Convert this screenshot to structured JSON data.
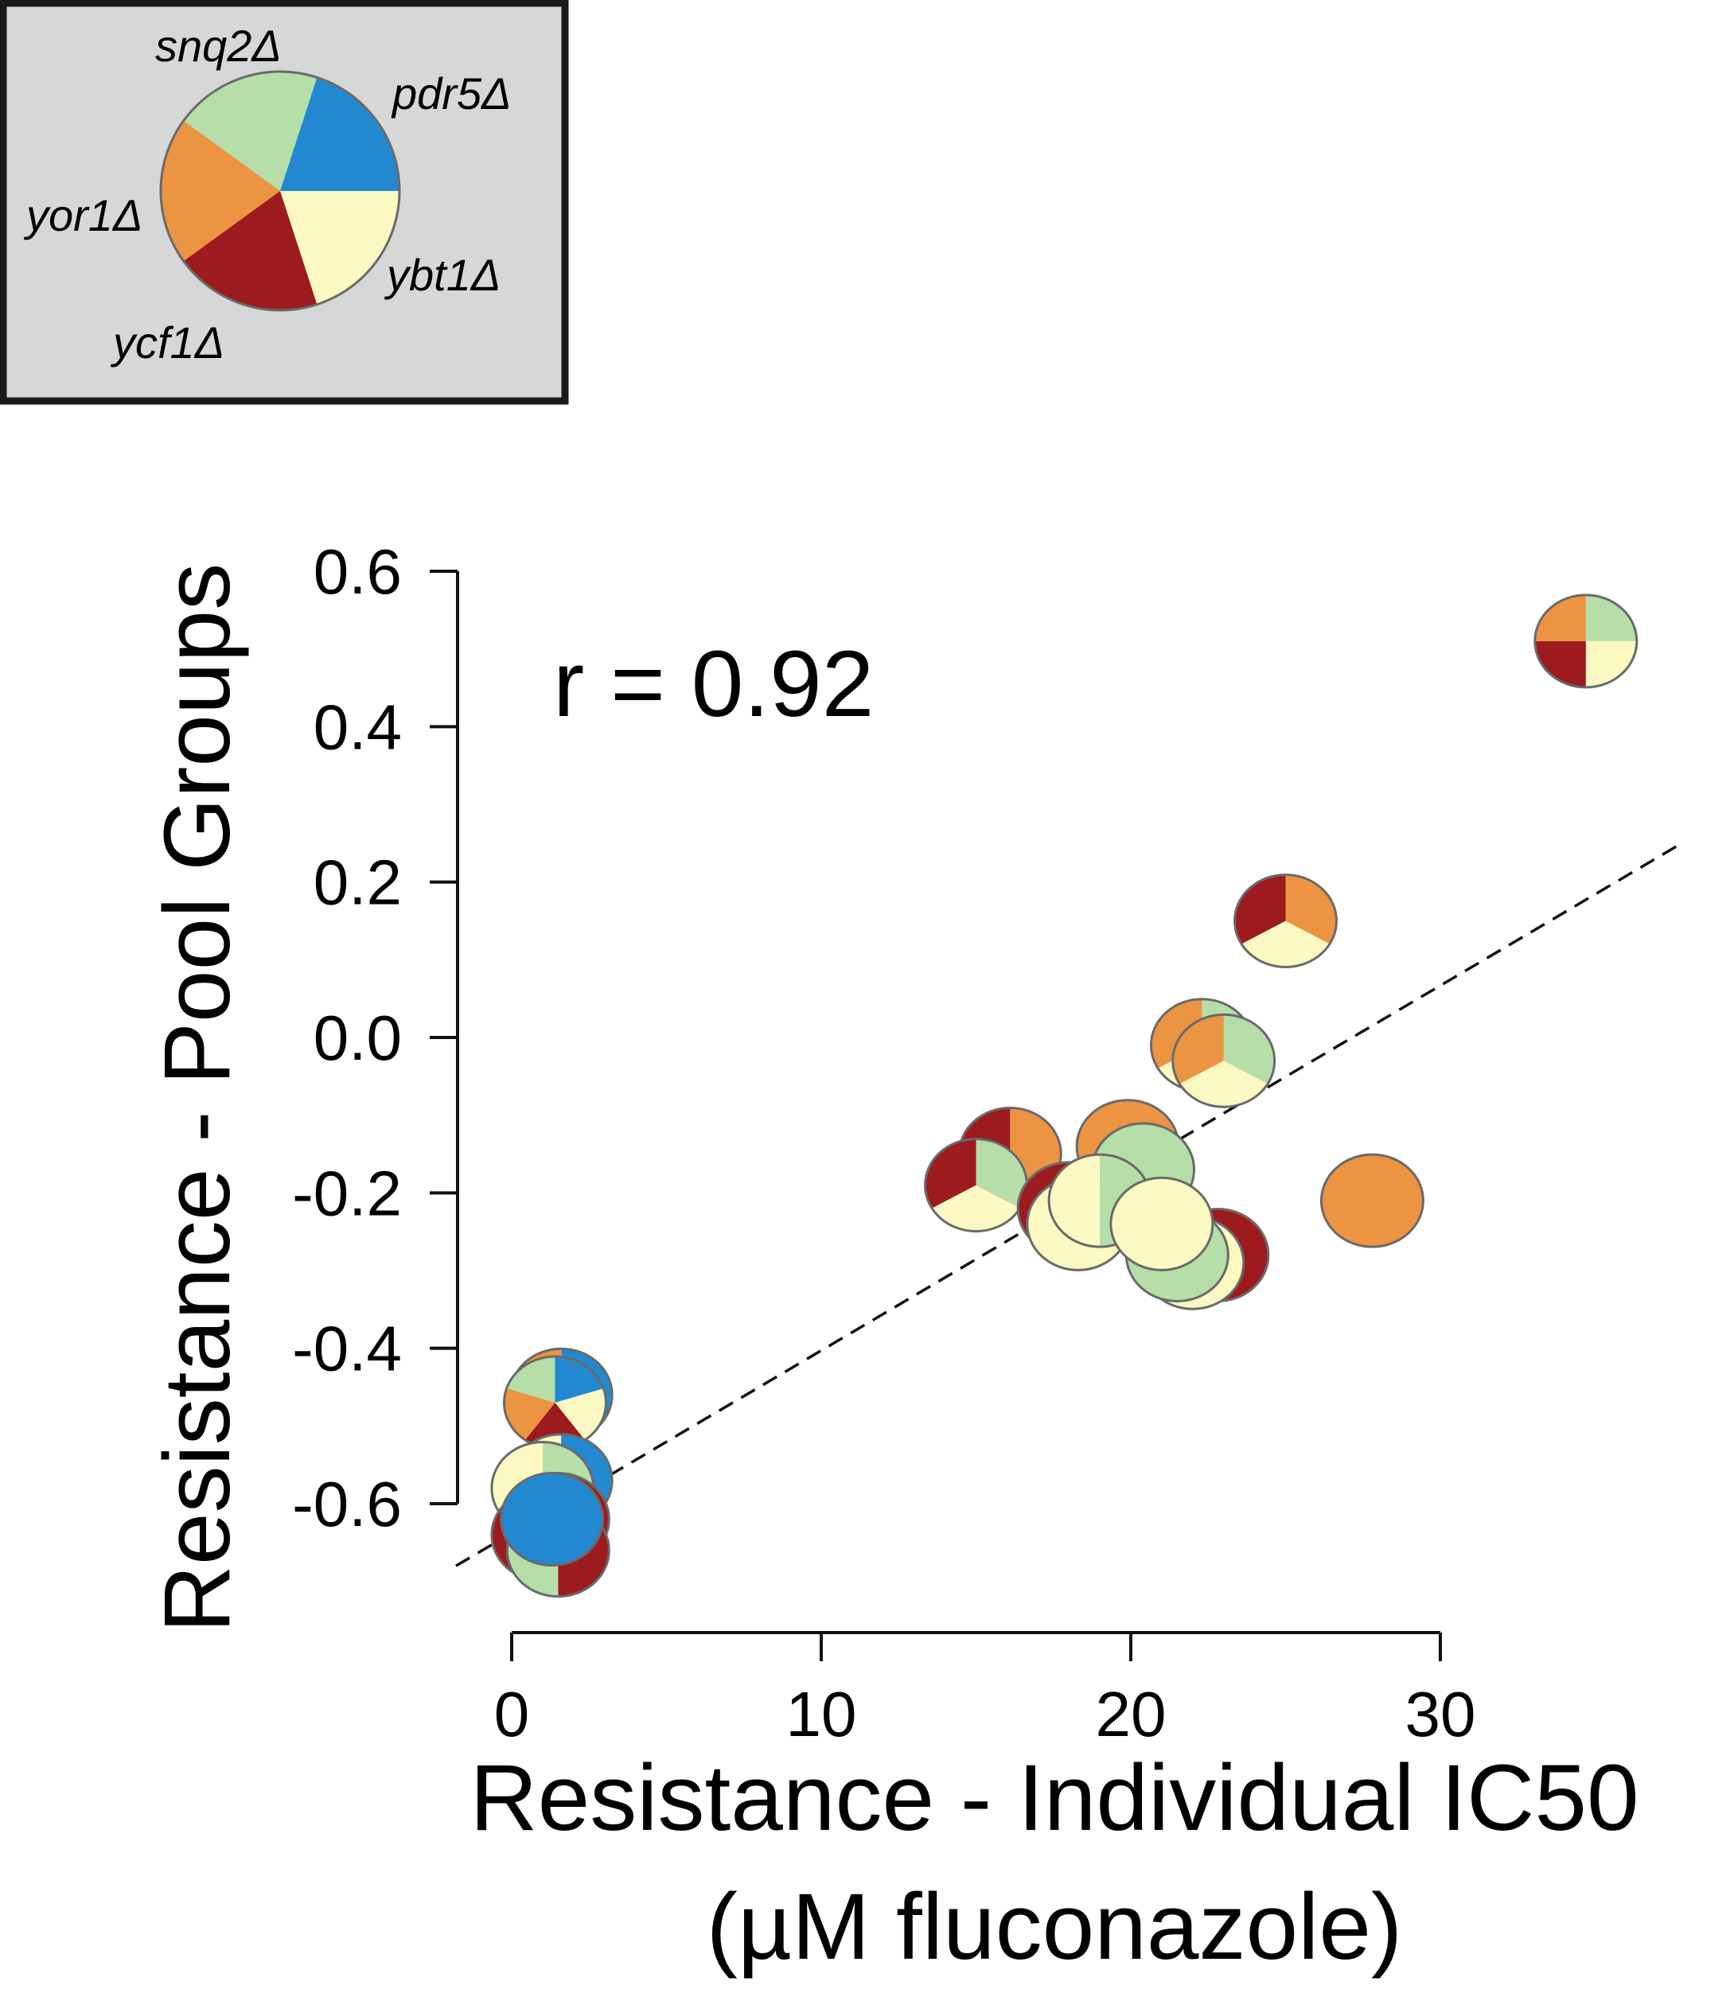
{
  "chart_data": {
    "type": "scatter",
    "title": "",
    "xlabel": "Resistance - Individual IC50",
    "xlabel_line2": "(µM fluconazole)",
    "ylabel": "Resistance - Pool Groups",
    "xlim": [
      -2,
      38
    ],
    "ylim": [
      -0.73,
      0.62
    ],
    "x_ticks": [
      0,
      10,
      20,
      30
    ],
    "x_tick_labels": [
      "0",
      "10",
      "20",
      "30"
    ],
    "y_ticks": [
      0.6,
      0.4,
      0.2,
      0.0,
      -0.2,
      -0.4,
      -0.6
    ],
    "y_tick_labels": [
      "0.6",
      "0.4",
      "0.2",
      "0.0",
      "-0.2",
      "-0.4",
      "-0.6"
    ],
    "grid": false,
    "annotation": "r = 0.92",
    "trend_line": {
      "style": "dashed",
      "x": [
        -1.8,
        37.8
      ],
      "y": [
        -0.68,
        0.25
      ]
    },
    "legend": {
      "placement": "top-left",
      "strains": [
        {
          "name": "pdr5Δ",
          "color": "#2289d0"
        },
        {
          "name": "ybt1Δ",
          "color": "#fbf8c2"
        },
        {
          "name": "ycf1Δ",
          "color": "#9d1a1e"
        },
        {
          "name": "yor1Δ",
          "color": "#ec9442"
        },
        {
          "name": "snq2Δ",
          "color": "#b5dea8"
        }
      ]
    },
    "points": [
      {
        "x": 34.7,
        "y": 0.51,
        "slices": [
          "snq2Δ",
          "ybt1Δ",
          "ycf1Δ",
          "yor1Δ"
        ]
      },
      {
        "x": 25.0,
        "y": 0.15,
        "slices": [
          "yor1Δ",
          "ybt1Δ",
          "ycf1Δ"
        ]
      },
      {
        "x": 27.8,
        "y": -0.21,
        "slices": [
          "yor1Δ"
        ]
      },
      {
        "x": 22.3,
        "y": -0.01,
        "slices": [
          "snq2Δ",
          "ybt1Δ",
          "yor1Δ"
        ]
      },
      {
        "x": 23.0,
        "y": -0.03,
        "slices": [
          "snq2Δ",
          "ybt1Δ",
          "yor1Δ"
        ]
      },
      {
        "x": 16.1,
        "y": -0.15,
        "slices": [
          "yor1Δ",
          "ycf1Δ"
        ]
      },
      {
        "x": 15.0,
        "y": -0.19,
        "slices": [
          "snq2Δ",
          "ybt1Δ",
          "ycf1Δ"
        ]
      },
      {
        "x": 19.9,
        "y": -0.14,
        "slices": [
          "yor1Δ"
        ]
      },
      {
        "x": 20.4,
        "y": -0.17,
        "slices": [
          "snq2Δ"
        ]
      },
      {
        "x": 18.0,
        "y": -0.22,
        "slices": [
          "ybt1Δ",
          "ycf1Δ"
        ]
      },
      {
        "x": 18.3,
        "y": -0.24,
        "slices": [
          "ybt1Δ"
        ]
      },
      {
        "x": 19.0,
        "y": -0.21,
        "slices": [
          "snq2Δ",
          "ybt1Δ"
        ]
      },
      {
        "x": 22.8,
        "y": -0.28,
        "slices": [
          "ycf1Δ"
        ]
      },
      {
        "x": 22.0,
        "y": -0.29,
        "slices": [
          "ybt1Δ"
        ]
      },
      {
        "x": 21.5,
        "y": -0.28,
        "slices": [
          "snq2Δ"
        ]
      },
      {
        "x": 21.0,
        "y": -0.24,
        "slices": [
          "ybt1Δ"
        ]
      },
      {
        "x": 1.6,
        "y": -0.46,
        "slices": [
          "pdr5Δ",
          "ybt1Δ",
          "yor1Δ"
        ]
      },
      {
        "x": 1.4,
        "y": -0.47,
        "slices": [
          "pdr5Δ",
          "ybt1Δ",
          "ycf1Δ",
          "yor1Δ",
          "snq2Δ"
        ]
      },
      {
        "x": 1.6,
        "y": -0.57,
        "slices": [
          "pdr5Δ",
          "ybt1Δ"
        ]
      },
      {
        "x": 1.0,
        "y": -0.58,
        "slices": [
          "snq2Δ",
          "ybt1Δ"
        ]
      },
      {
        "x": 1.5,
        "y": -0.62,
        "slices": [
          "ycf1Δ",
          "pdr5Δ"
        ]
      },
      {
        "x": 1.0,
        "y": -0.64,
        "slices": [
          "snq2Δ",
          "ycf1Δ"
        ]
      },
      {
        "x": 1.5,
        "y": -0.66,
        "slices": [
          "ycf1Δ",
          "snq2Δ"
        ]
      },
      {
        "x": 1.3,
        "y": -0.62,
        "slices": [
          "pdr5Δ"
        ]
      }
    ]
  }
}
